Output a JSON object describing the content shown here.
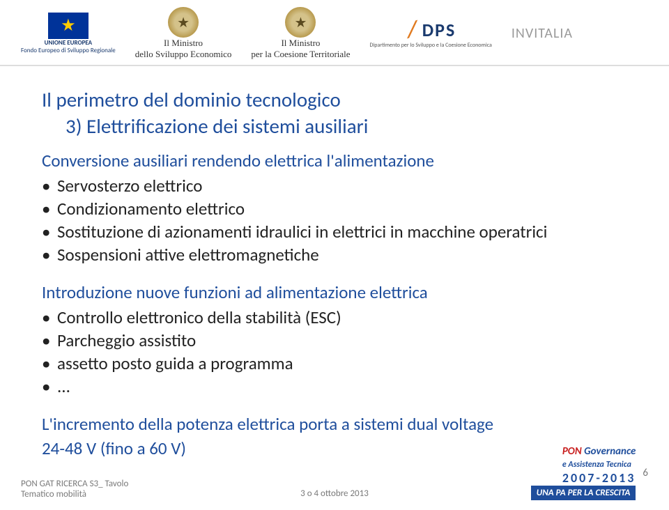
{
  "header": {
    "eu": {
      "label_bold": "UNIONE EUROPEA",
      "label_sub": "Fondo Europeo di Sviluppo Regionale"
    },
    "emblem1": {
      "line1": "Il Ministro",
      "line2": "dello Sviluppo Economico"
    },
    "emblem2": {
      "line1": "Il Ministro",
      "line2": "per la Coesione Territoriale"
    },
    "dps": {
      "text": "DPS",
      "sub": "Dipartimento per lo Sviluppo e la Coesione Economica"
    },
    "invitalia": "INVITALIA"
  },
  "title": "Il perimetro del dominio tecnologico",
  "subtitle": "3) Elettrificazione dei sistemi ausiliari",
  "section1": {
    "heading": "Conversione ausiliari rendendo elettrica l'alimentazione",
    "items": [
      "Servosterzo elettrico",
      "Condizionamento elettrico",
      "Sostituzione di azionamenti idraulici in elettrici in macchine operatrici",
      "Sospensioni attive elettromagnetiche"
    ]
  },
  "section2": {
    "heading": "Introduzione nuove funzioni ad alimentazione elettrica",
    "items": [
      "Controllo elettronico della stabilità (ESC)",
      "Parcheggio assistito",
      "assetto posto guida a programma",
      "..."
    ]
  },
  "section3": {
    "heading_line1": "L'incremento della potenza elettrica porta a sistemi dual voltage",
    "heading_line2": "24-48 V (fino a 60 V)"
  },
  "footer": {
    "left_line1": "PON GAT RICERCA S3_ Tavolo",
    "left_line2": "Tematico mobilità",
    "center": "3 o 4 ottobre  2013",
    "pon_red": "PON",
    "pon_blue1": "Governance",
    "pon_blue2": "e Assistenza Tecnica",
    "pon_years": "2007-2013",
    "una_pa": "UNA PA PER LA CRESCITA",
    "page": "6"
  }
}
